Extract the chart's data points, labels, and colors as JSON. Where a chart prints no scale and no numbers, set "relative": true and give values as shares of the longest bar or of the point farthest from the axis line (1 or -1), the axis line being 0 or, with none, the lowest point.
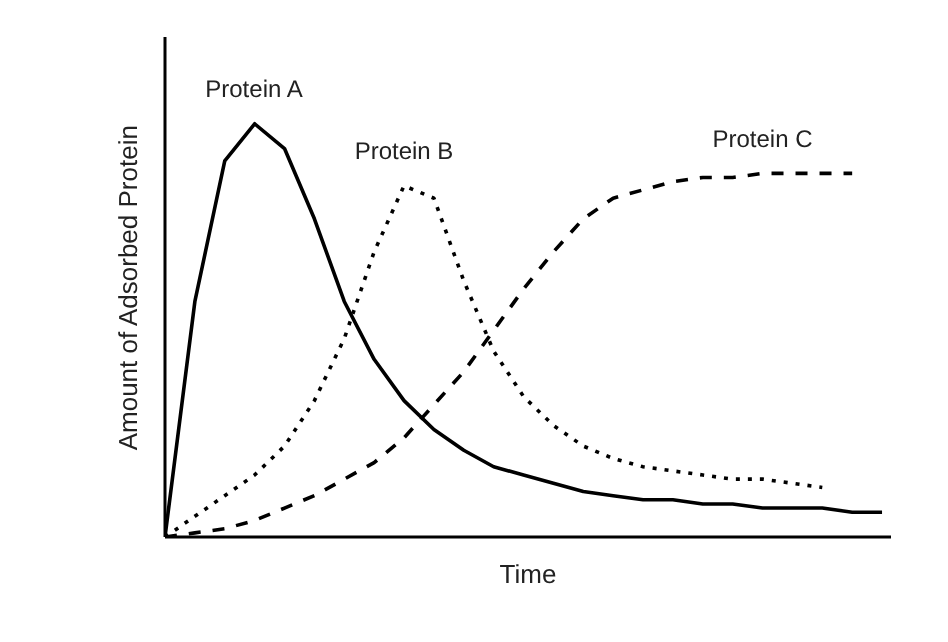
{
  "chart_data": {
    "type": "line",
    "relative": true,
    "xlabel": "Time",
    "ylabel": "Amount of Adsorbed Protein",
    "grid": false,
    "legend": false,
    "tick_labels": false,
    "categories": [
      null,
      null,
      null,
      null,
      null,
      null,
      null,
      null,
      null,
      null,
      null,
      null,
      null,
      null,
      null,
      null,
      null,
      null,
      null,
      null,
      null,
      null,
      null,
      null,
      null
    ],
    "series": [
      {
        "name": "Protein A",
        "color": "#000000",
        "line_style": "solid",
        "values": [
          0,
          0.57,
          0.91,
          1,
          0.94,
          0.77,
          0.57,
          0.43,
          0.33,
          0.26,
          0.21,
          0.17,
          0.15,
          0.13,
          0.11,
          0.1,
          0.09,
          0.09,
          0.08,
          0.08,
          0.07,
          0.07,
          0.07,
          0.06,
          0.06
        ]
      },
      {
        "name": "Protein B",
        "color": "#000000",
        "line_style": "dotted",
        "values": [
          0,
          0.05,
          0.1,
          0.15,
          0.22,
          0.33,
          0.48,
          0.69,
          0.85,
          0.82,
          0.62,
          0.45,
          0.34,
          0.27,
          0.22,
          0.19,
          0.17,
          0.16,
          0.15,
          0.14,
          0.14,
          0.13,
          0.12,
          null,
          null
        ]
      },
      {
        "name": "Protein C",
        "color": "#000000",
        "line_style": "dashed",
        "values": [
          0,
          0.01,
          0.02,
          0.04,
          0.07,
          0.1,
          0.14,
          0.18,
          0.24,
          0.32,
          0.4,
          0.5,
          0.6,
          0.69,
          0.77,
          0.82,
          0.84,
          0.86,
          0.87,
          0.87,
          0.88,
          0.88,
          0.88,
          0.88,
          null
        ]
      }
    ]
  }
}
